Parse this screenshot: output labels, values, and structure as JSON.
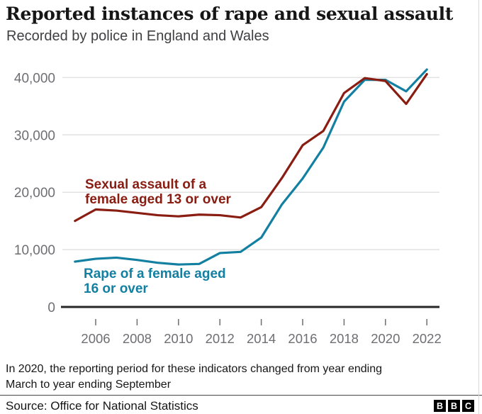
{
  "header": {
    "title": "Reported instances of rape and sexual assault",
    "subtitle": "Recorded by police in England and Wales"
  },
  "chart_data": {
    "type": "line",
    "x": [
      2005,
      2006,
      2007,
      2008,
      2009,
      2010,
      2011,
      2012,
      2013,
      2014,
      2015,
      2016,
      2017,
      2018,
      2019,
      2020,
      2021,
      2022
    ],
    "series": [
      {
        "name": "Rape of a female aged 16 or over",
        "color": "#1380a1",
        "values": [
          7900,
          8400,
          8600,
          8200,
          7700,
          7400,
          7500,
          9400,
          9600,
          12100,
          17900,
          22400,
          27800,
          35800,
          39600,
          39600,
          37600,
          41400
        ]
      },
      {
        "name": "Sexual assault of a female aged 13 or over",
        "color": "#8a1d12",
        "values": [
          15000,
          17000,
          16800,
          16400,
          16000,
          15800,
          16100,
          16000,
          15600,
          17400,
          22500,
          28200,
          30700,
          37300,
          39900,
          39400,
          35400,
          40600
        ]
      }
    ],
    "annotations": [
      {
        "text": "Sexual assault of a\nfemale aged 13 or over",
        "color": "#8a1d12"
      },
      {
        "text": "Rape of a female aged\n16 or over",
        "color": "#1380a1"
      }
    ],
    "xticks": {
      "values": [
        2006,
        2008,
        2010,
        2012,
        2014,
        2016,
        2018,
        2020,
        2022
      ],
      "labels": [
        "2006",
        "2008",
        "2010",
        "2012",
        "2014",
        "2016",
        "2018",
        "2020",
        "2022"
      ]
    },
    "yticks": {
      "values": [
        0,
        10000,
        20000,
        30000,
        40000
      ],
      "labels": [
        "0",
        "10,000",
        "20,000",
        "30,000",
        "40,000"
      ]
    },
    "xlim": [
      2005,
      2022
    ],
    "ylim": [
      0,
      42000
    ],
    "grid": true,
    "legend": "direct-labels",
    "title": "Reported instances of rape and sexual assault",
    "xlabel": "",
    "ylabel": ""
  },
  "colors": {
    "grid": "#e2e2e2",
    "axis_line": "#262626",
    "axis_text": "#6e6e73"
  },
  "footnote": "In 2020, the reporting period for these indicators changed from year ending\nMarch to year ending September",
  "source": {
    "label": "Source: Office for National Statistics"
  },
  "logo": {
    "letters": [
      "B",
      "B",
      "C"
    ]
  }
}
